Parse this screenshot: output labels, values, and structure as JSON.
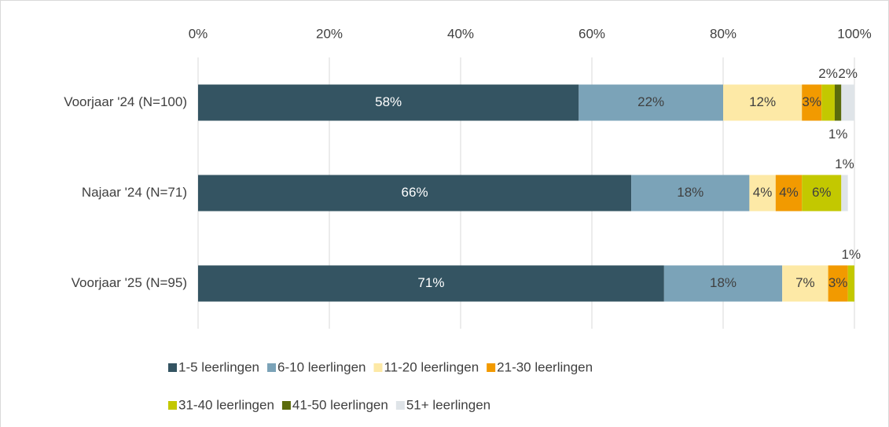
{
  "chart_data": {
    "type": "stacked_bar_horizontal",
    "categories": [
      "Voorjaar '24 (N=100)",
      "Najaar '24 (N=71)",
      "Voorjaar '25 (N=95)"
    ],
    "series": [
      {
        "name": "1-5 leerlingen",
        "color": "#345462",
        "values": [
          58,
          66,
          71
        ],
        "value_labels": [
          "58%",
          "66%",
          "71%"
        ]
      },
      {
        "name": "6-10 leerlingen",
        "color": "#7ba3b8",
        "values": [
          22,
          18,
          18
        ],
        "value_labels": [
          "22%",
          "18%",
          "18%"
        ]
      },
      {
        "name": "11-20 leerlingen",
        "color": "#fde9a6",
        "values": [
          12,
          4,
          7
        ],
        "value_labels": [
          "12%",
          "4%",
          "7%"
        ]
      },
      {
        "name": "21-30 leerlingen",
        "color": "#f29a00",
        "values": [
          3,
          4,
          3
        ],
        "value_labels": [
          "3%",
          "4%",
          "3%"
        ]
      },
      {
        "name": "31-40 leerlingen",
        "color": "#c3c800",
        "values": [
          2,
          6,
          1
        ],
        "value_labels": [
          "2%",
          "6%",
          "1%"
        ]
      },
      {
        "name": "41-50 leerlingen",
        "color": "#5b6b0c",
        "values": [
          1,
          null,
          null
        ],
        "value_labels": [
          "1%",
          null,
          null
        ]
      },
      {
        "name": "51+ leerlingen",
        "color": "#dfe4e8",
        "values": [
          2,
          1,
          null
        ],
        "value_labels": [
          "2%",
          "1%",
          null
        ]
      }
    ],
    "xlim": [
      0,
      100
    ],
    "xticks": [
      {
        "value": 0,
        "label": "0%"
      },
      {
        "value": 20,
        "label": "20%"
      },
      {
        "value": 40,
        "label": "40%"
      },
      {
        "value": 60,
        "label": "60%"
      },
      {
        "value": 80,
        "label": "80%"
      },
      {
        "value": 100,
        "label": "100%"
      }
    ],
    "grid": true,
    "legend": "bottom"
  }
}
